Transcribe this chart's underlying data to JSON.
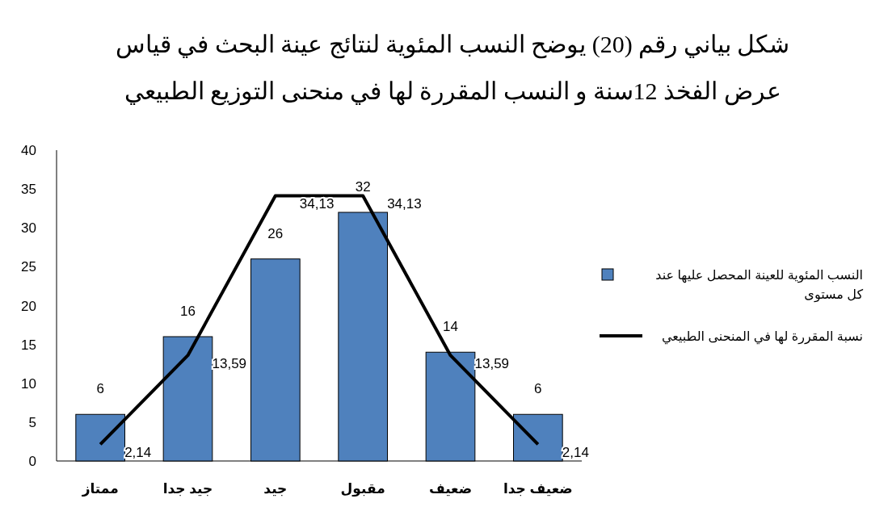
{
  "chart_data": {
    "type": "bar",
    "title": "شكل بياني رقم (20) يوضح  النسب المئوية لنتائج عينة البحث في  قياس\nعرض الفخذ 12سنة     و النسب المقررة  لها في منحنى التوزيع الطبيعي",
    "categories": [
      "ممتاز",
      "جيد جدا",
      "جيد",
      "مقبول",
      "ضعيف",
      "ضعيف جدا"
    ],
    "series": [
      {
        "name": "النسب المئوية للعينة المحصل عليها عند كل مستوى",
        "color": "#4f81bd",
        "values": [
          6,
          16,
          26,
          32,
          14,
          6
        ],
        "value_labels": [
          "6",
          "16",
          "26",
          "32",
          "14",
          "6"
        ]
      },
      {
        "name": "نسبة المقررة لها في المنحنى الطبيعي",
        "type": "line",
        "color": "#000000",
        "values": [
          2.14,
          13.59,
          34.13,
          34.13,
          13.59,
          2.14
        ],
        "value_labels": [
          "2,14",
          "13,59",
          "34,13",
          "34,13",
          "13,59",
          "2,14"
        ]
      }
    ],
    "ylim": [
      0,
      40
    ],
    "yticks": [
      0,
      5,
      10,
      15,
      20,
      25,
      30,
      35,
      40
    ],
    "grid": false,
    "legend": "right",
    "marker": "none",
    "line_style": "solid"
  }
}
